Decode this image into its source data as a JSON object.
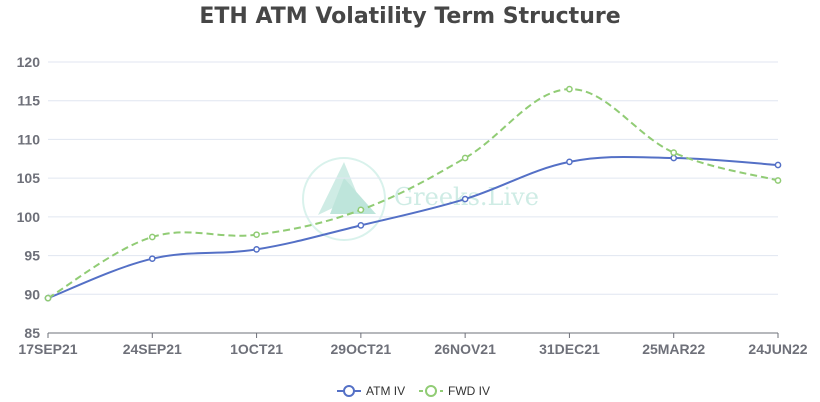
{
  "chart_data": {
    "type": "line",
    "title": "ETH ATM Volatility Term Structure",
    "categories": [
      "17SEP21",
      "24SEP21",
      "1OCT21",
      "29OCT21",
      "26NOV21",
      "31DEC21",
      "25MAR22",
      "24JUN22"
    ],
    "series": [
      {
        "name": "ATM IV",
        "values": [
          89.5,
          94.6,
          95.8,
          98.9,
          102.3,
          107.1,
          107.6,
          106.7
        ],
        "color": "#5470c6",
        "style": "solid"
      },
      {
        "name": "FWD IV",
        "values": [
          89.5,
          97.4,
          97.7,
          100.9,
          107.6,
          116.5,
          108.3,
          104.7
        ],
        "color": "#91cc75",
        "style": "dashed"
      }
    ],
    "ylim": [
      85,
      120
    ],
    "yticks": [
      85,
      90,
      95,
      100,
      105,
      110,
      115,
      120
    ],
    "grid": true,
    "legend": "bottom-center",
    "watermark": "Greeks.Live"
  }
}
